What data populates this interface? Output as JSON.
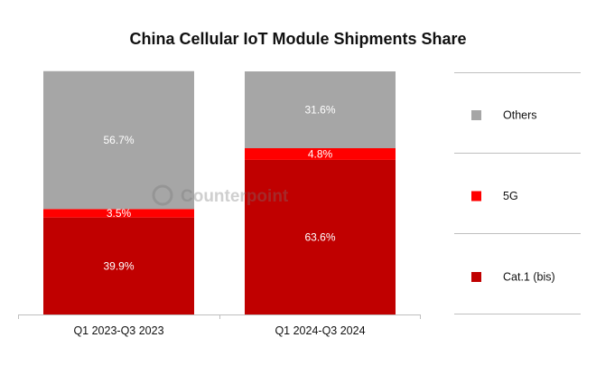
{
  "chart_data": {
    "type": "bar",
    "stacked": true,
    "title": "China Cellular IoT Module Shipments Share",
    "categories": [
      "Q1 2023-Q3 2023",
      "Q1 2024-Q3 2024"
    ],
    "series": [
      {
        "name": "Cat.1 (bis)",
        "values": [
          39.9,
          63.6
        ],
        "labels": [
          "39.9%",
          "63.6%"
        ],
        "color": "#c00000"
      },
      {
        "name": "5G",
        "values": [
          3.5,
          4.8
        ],
        "labels": [
          "3.5%",
          "4.8%"
        ],
        "color": "#ff0000"
      },
      {
        "name": "Others",
        "values": [
          56.7,
          31.6
        ],
        "labels": [
          "56.7%",
          "31.6%"
        ],
        "color": "#a6a6a6"
      }
    ],
    "legend_order": [
      "Others",
      "5G",
      "Cat.1 (bis)"
    ],
    "legend_position": "right",
    "ylim": [
      0,
      100
    ],
    "xlabel": "",
    "ylabel": "",
    "grid": false
  },
  "watermark": "Counterpoint"
}
